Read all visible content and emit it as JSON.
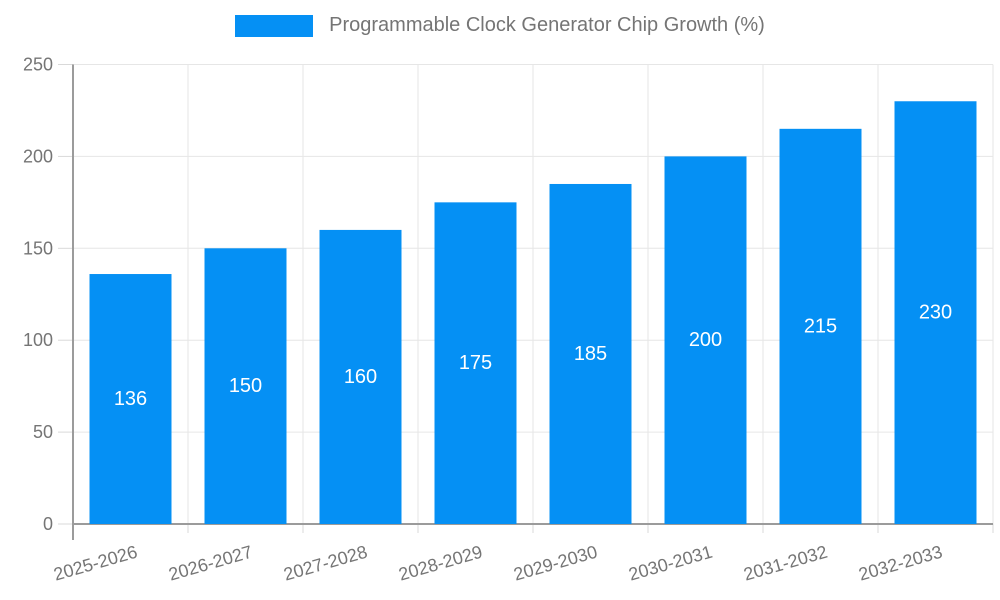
{
  "legend": {
    "label": "Programmable Clock Generator Chip Growth (%)"
  },
  "colors": {
    "bar": "#0590f4",
    "bar_label": "#ffffff",
    "axis_text": "#757575",
    "title_text": "#757575",
    "grid_line": "#e6e6e6",
    "tick_mark": "#d9d9d9",
    "axis_line": "#9b9b9b",
    "background": "#ffffff"
  },
  "chart_data": {
    "type": "bar",
    "title": "Programmable Clock Generator Chip Growth (%)",
    "categories": [
      "2025-2026",
      "2026-2027",
      "2027-2028",
      "2028-2029",
      "2029-2030",
      "2030-2031",
      "2031-2032",
      "2032-2033"
    ],
    "series": [
      {
        "name": "Programmable Clock Generator Chip Growth (%)",
        "values": [
          136,
          150,
          160,
          175,
          185,
          200,
          215,
          230
        ]
      }
    ],
    "bar_value_labels": [
      "136",
      "150",
      "160",
      "175",
      "185",
      "200",
      "215",
      "230"
    ],
    "y_tick_labels": [
      "0",
      "50",
      "100",
      "150",
      "200",
      "250"
    ],
    "xlabel": "",
    "ylabel": "",
    "ylim": [
      0,
      250
    ],
    "ytick_step": 50,
    "grid": true,
    "legend_position": "top",
    "x_label_rotation_deg": -16
  }
}
